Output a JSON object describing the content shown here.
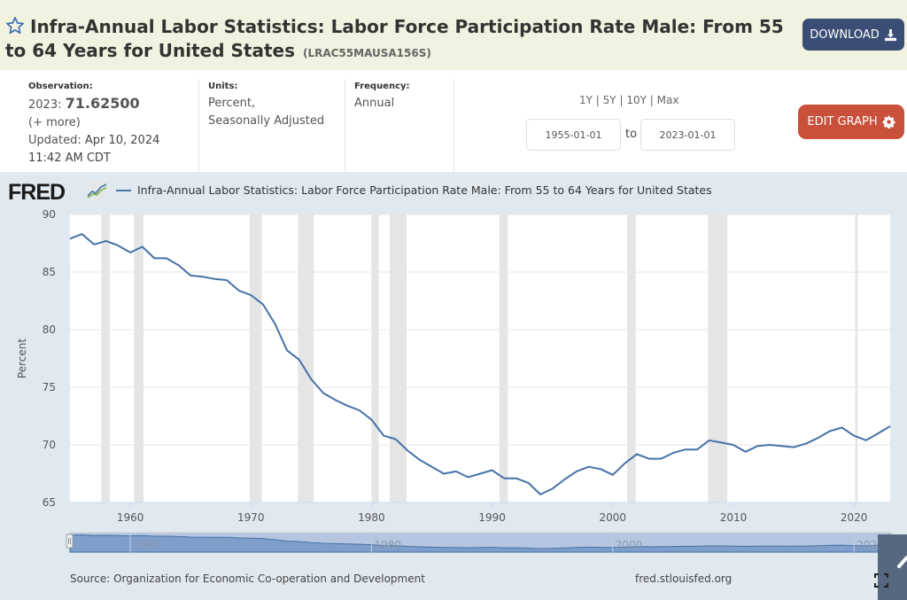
{
  "header": {
    "title": "Infra-Annual Labor Statistics: Labor Force Participation Rate Male: From 55 to 64 Years for United States",
    "series_id": "(LRAC55MAUSA156S)",
    "download_label": "DOWNLOAD",
    "star_icon": "star-outline-icon",
    "download_icon": "download-icon"
  },
  "meta": {
    "observation_label": "Observation:",
    "observation_year": "2023:",
    "observation_value": "71.62500",
    "more_link": "(+ more)",
    "updated_label": "Updated:",
    "updated_date": "Apr 10, 2024",
    "updated_time": "11:42 AM CDT",
    "units_label": "Units:",
    "units_line1": "Percent,",
    "units_line2": "Seasonally Adjusted",
    "frequency_label": "Frequency:",
    "frequency_value": "Annual"
  },
  "range": {
    "links": [
      "1Y",
      "5Y",
      "10Y",
      "Max"
    ],
    "separator": "|",
    "start_date": "1955-01-01",
    "to_label": "to",
    "end_date": "2023-01-01"
  },
  "edit_graph_label": "EDIT GRAPH",
  "footer": {
    "source": "Source: Organization for Economic Co-operation and Development",
    "url": "fred.stlouisfed.org"
  },
  "colors": {
    "series_line": "#4572a7",
    "recession_band": "#e5e5e5",
    "download_button": "#3a4e75",
    "edit_button": "#c9503a",
    "header_bg": "#f1f2df",
    "chart_bg": "#e1e9f0"
  },
  "chart_data": {
    "type": "line",
    "title": "Infra-Annual Labor Statistics: Labor Force Participation Rate Male: From 55 to 64 Years for United States",
    "logo": "FRED",
    "xlabel": "",
    "ylabel": "Percent",
    "xlim": [
      1955,
      2023
    ],
    "ylim": [
      65,
      90
    ],
    "yticks": [
      65,
      70,
      75,
      80,
      85,
      90
    ],
    "xticks": [
      1960,
      1970,
      1980,
      1990,
      2000,
      2010,
      2020
    ],
    "navigator_ticks": [
      1960,
      1980,
      2000,
      2020
    ],
    "grid": true,
    "legend": "top-left",
    "recessions": [
      [
        1957.6,
        1958.3
      ],
      [
        1960.3,
        1961.1
      ],
      [
        1969.9,
        1970.9
      ],
      [
        1973.9,
        1975.2
      ],
      [
        1980.0,
        1980.6
      ],
      [
        1981.5,
        1982.9
      ],
      [
        1990.6,
        1991.3
      ],
      [
        2001.2,
        2001.9
      ],
      [
        2007.9,
        2009.5
      ],
      [
        2020.1,
        2020.3
      ]
    ],
    "series": [
      {
        "name": "Infra-Annual Labor Statistics: Labor Force Participation Rate Male: From 55 to 64 Years for United States",
        "x": [
          1955,
          1956,
          1957,
          1958,
          1959,
          1960,
          1961,
          1962,
          1963,
          1964,
          1965,
          1966,
          1967,
          1968,
          1969,
          1970,
          1971,
          1972,
          1973,
          1974,
          1975,
          1976,
          1977,
          1978,
          1979,
          1980,
          1981,
          1982,
          1983,
          1984,
          1985,
          1986,
          1987,
          1988,
          1989,
          1990,
          1991,
          1992,
          1993,
          1994,
          1995,
          1996,
          1997,
          1998,
          1999,
          2000,
          2001,
          2002,
          2003,
          2004,
          2005,
          2006,
          2007,
          2008,
          2009,
          2010,
          2011,
          2012,
          2013,
          2014,
          2015,
          2016,
          2017,
          2018,
          2019,
          2020,
          2021,
          2022,
          2023
        ],
        "values": [
          87.9,
          88.3,
          87.4,
          87.7,
          87.3,
          86.7,
          87.2,
          86.2,
          86.2,
          85.6,
          84.7,
          84.6,
          84.4,
          84.3,
          83.4,
          83.0,
          82.2,
          80.5,
          78.2,
          77.4,
          75.7,
          74.5,
          73.9,
          73.4,
          73.0,
          72.2,
          70.8,
          70.5,
          69.5,
          68.7,
          68.1,
          67.5,
          67.7,
          67.2,
          67.5,
          67.8,
          67.1,
          67.1,
          66.7,
          65.7,
          66.2,
          67.0,
          67.7,
          68.1,
          67.9,
          67.4,
          68.4,
          69.2,
          68.8,
          68.8,
          69.3,
          69.6,
          69.6,
          70.4,
          70.2,
          70.0,
          69.4,
          69.9,
          70.0,
          69.9,
          69.8,
          70.1,
          70.6,
          71.2,
          71.5,
          70.8,
          70.4,
          71.0,
          71.625
        ]
      }
    ]
  }
}
